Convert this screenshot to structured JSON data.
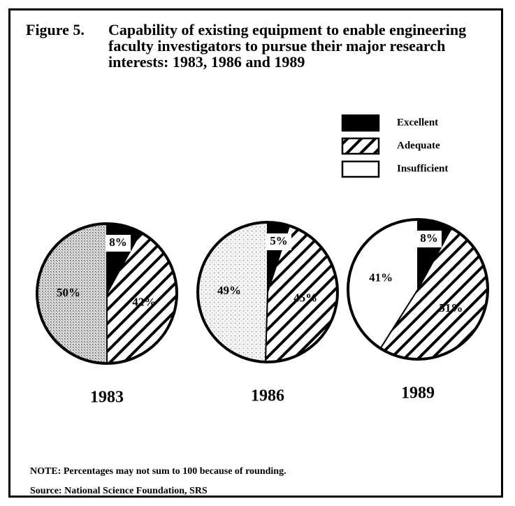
{
  "figure_number": "Figure 5.",
  "title": "Capability of existing equipment to enable engineering faculty investigators to pursue their major research interests:  1983, 1986 and 1989",
  "note": "NOTE:  Percentages may not sum to 100 because of rounding.",
  "source": "Source:  National Science Foundation, SRS",
  "legend": [
    {
      "name": "Excellent",
      "pattern": "solid"
    },
    {
      "name": "Adequate",
      "pattern": "hatch"
    },
    {
      "name": "Insufficient",
      "pattern": "white"
    }
  ],
  "chart_data": [
    {
      "type": "pie",
      "title": "1983",
      "categories": [
        "Excellent",
        "Adequate",
        "Insufficient"
      ],
      "values": [
        8,
        42,
        50
      ],
      "value_labels": [
        "8%",
        "42%",
        "50%"
      ],
      "patterns": [
        "solid",
        "hatch",
        "dots"
      ]
    },
    {
      "type": "pie",
      "title": "1986",
      "categories": [
        "Excellent",
        "Adequate",
        "Insufficient"
      ],
      "values": [
        5,
        45,
        49
      ],
      "value_labels": [
        "5%",
        "45%",
        "49%"
      ],
      "patterns": [
        "solid",
        "hatch",
        "lightdots"
      ]
    },
    {
      "type": "pie",
      "title": "1989",
      "categories": [
        "Excellent",
        "Adequate",
        "Insufficient"
      ],
      "values": [
        8,
        51,
        41
      ],
      "value_labels": [
        "8%",
        "51%",
        "41%"
      ],
      "patterns": [
        "solid",
        "hatch",
        "white"
      ]
    }
  ]
}
